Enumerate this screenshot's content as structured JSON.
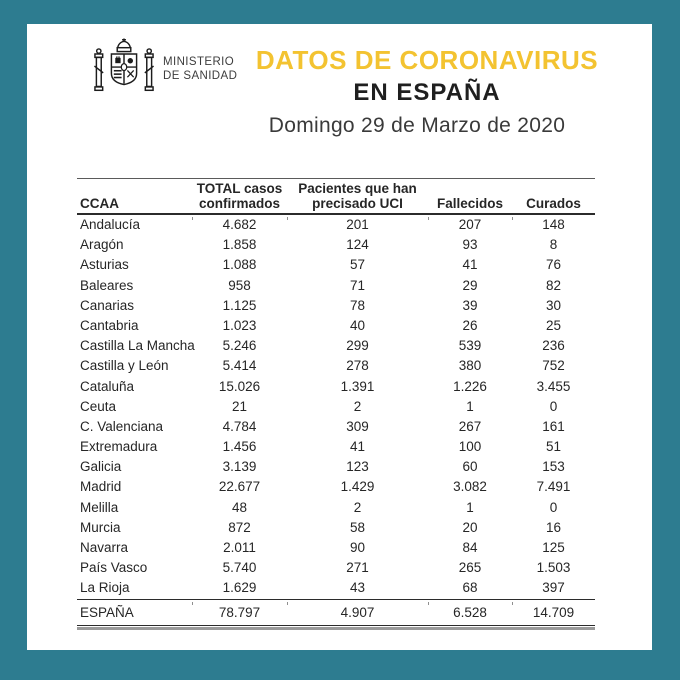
{
  "frame": {
    "background_color": "#2d7c90"
  },
  "header": {
    "ministry_name": "MINISTERIO\nDE SANIDAD",
    "title_line1": "DATOS DE CORONAVIRUS",
    "title_line2": "EN ESPAÑA",
    "title_accent_color": "#f3c331",
    "date": "Domingo 29 de Marzo de 2020"
  },
  "table": {
    "header": {
      "ccaa": "CCAA",
      "total_line1": "TOTAL casos",
      "total_line2": "confirmados",
      "uci_line1": "Pacientes que han",
      "uci_line2": "precisado UCI",
      "fallecidos": "Fallecidos",
      "curados": "Curados"
    },
    "rows": [
      {
        "ccaa": "Andalucía",
        "total": "4.682",
        "uci": "201",
        "fallecidos": "207",
        "curados": "148"
      },
      {
        "ccaa": "Aragón",
        "total": "1.858",
        "uci": "124",
        "fallecidos": "93",
        "curados": "8"
      },
      {
        "ccaa": "Asturias",
        "total": "1.088",
        "uci": "57",
        "fallecidos": "41",
        "curados": "76"
      },
      {
        "ccaa": "Baleares",
        "total": "958",
        "uci": "71",
        "fallecidos": "29",
        "curados": "82"
      },
      {
        "ccaa": "Canarias",
        "total": "1.125",
        "uci": "78",
        "fallecidos": "39",
        "curados": "30"
      },
      {
        "ccaa": "Cantabria",
        "total": "1.023",
        "uci": "40",
        "fallecidos": "26",
        "curados": "25"
      },
      {
        "ccaa": "Castilla La Mancha",
        "total": "5.246",
        "uci": "299",
        "fallecidos": "539",
        "curados": "236"
      },
      {
        "ccaa": "Castilla y León",
        "total": "5.414",
        "uci": "278",
        "fallecidos": "380",
        "curados": "752"
      },
      {
        "ccaa": "Cataluña",
        "total": "15.026",
        "uci": "1.391",
        "fallecidos": "1.226",
        "curados": "3.455"
      },
      {
        "ccaa": "Ceuta",
        "total": "21",
        "uci": "2",
        "fallecidos": "1",
        "curados": "0"
      },
      {
        "ccaa": "C. Valenciana",
        "total": "4.784",
        "uci": "309",
        "fallecidos": "267",
        "curados": "161"
      },
      {
        "ccaa": "Extremadura",
        "total": "1.456",
        "uci": "41",
        "fallecidos": "100",
        "curados": "51"
      },
      {
        "ccaa": "Galicia",
        "total": "3.139",
        "uci": "123",
        "fallecidos": "60",
        "curados": "153"
      },
      {
        "ccaa": "Madrid",
        "total": "22.677",
        "uci": "1.429",
        "fallecidos": "3.082",
        "curados": "7.491"
      },
      {
        "ccaa": "Melilla",
        "total": "48",
        "uci": "2",
        "fallecidos": "1",
        "curados": "0"
      },
      {
        "ccaa": "Murcia",
        "total": "872",
        "uci": "58",
        "fallecidos": "20",
        "curados": "16"
      },
      {
        "ccaa": "Navarra",
        "total": "2.011",
        "uci": "90",
        "fallecidos": "84",
        "curados": "125"
      },
      {
        "ccaa": "País Vasco",
        "total": "5.740",
        "uci": "271",
        "fallecidos": "265",
        "curados": "1.503"
      },
      {
        "ccaa": "La Rioja",
        "total": "1.629",
        "uci": "43",
        "fallecidos": "68",
        "curados": "397"
      }
    ],
    "total_row": {
      "ccaa": "ESPAÑA",
      "total": "78.797",
      "uci": "4.907",
      "fallecidos": "6.528",
      "curados": "14.709"
    }
  },
  "chart_data": {
    "type": "table",
    "title": "DATOS DE CORONAVIRUS EN ESPAÑA",
    "subtitle": "Domingo 29 de Marzo de 2020",
    "columns": [
      "CCAA",
      "TOTAL casos confirmados",
      "Pacientes que han precisado UCI",
      "Fallecidos",
      "Curados"
    ],
    "rows": [
      [
        "Andalucía",
        4682,
        201,
        207,
        148
      ],
      [
        "Aragón",
        1858,
        124,
        93,
        8
      ],
      [
        "Asturias",
        1088,
        57,
        41,
        76
      ],
      [
        "Baleares",
        958,
        71,
        29,
        82
      ],
      [
        "Canarias",
        1125,
        78,
        39,
        30
      ],
      [
        "Cantabria",
        1023,
        40,
        26,
        25
      ],
      [
        "Castilla La Mancha",
        5246,
        299,
        539,
        236
      ],
      [
        "Castilla y León",
        5414,
        278,
        380,
        752
      ],
      [
        "Cataluña",
        15026,
        1391,
        1226,
        3455
      ],
      [
        "Ceuta",
        21,
        2,
        1,
        0
      ],
      [
        "C. Valenciana",
        4784,
        309,
        267,
        161
      ],
      [
        "Extremadura",
        1456,
        41,
        100,
        51
      ],
      [
        "Galicia",
        3139,
        123,
        60,
        153
      ],
      [
        "Madrid",
        22677,
        1429,
        3082,
        7491
      ],
      [
        "Melilla",
        48,
        2,
        1,
        0
      ],
      [
        "Murcia",
        872,
        58,
        20,
        16
      ],
      [
        "Navarra",
        2011,
        90,
        84,
        125
      ],
      [
        "País Vasco",
        5740,
        271,
        265,
        1503
      ],
      [
        "La Rioja",
        1629,
        43,
        68,
        397
      ],
      [
        "ESPAÑA",
        78797,
        4907,
        6528,
        14709
      ]
    ]
  }
}
